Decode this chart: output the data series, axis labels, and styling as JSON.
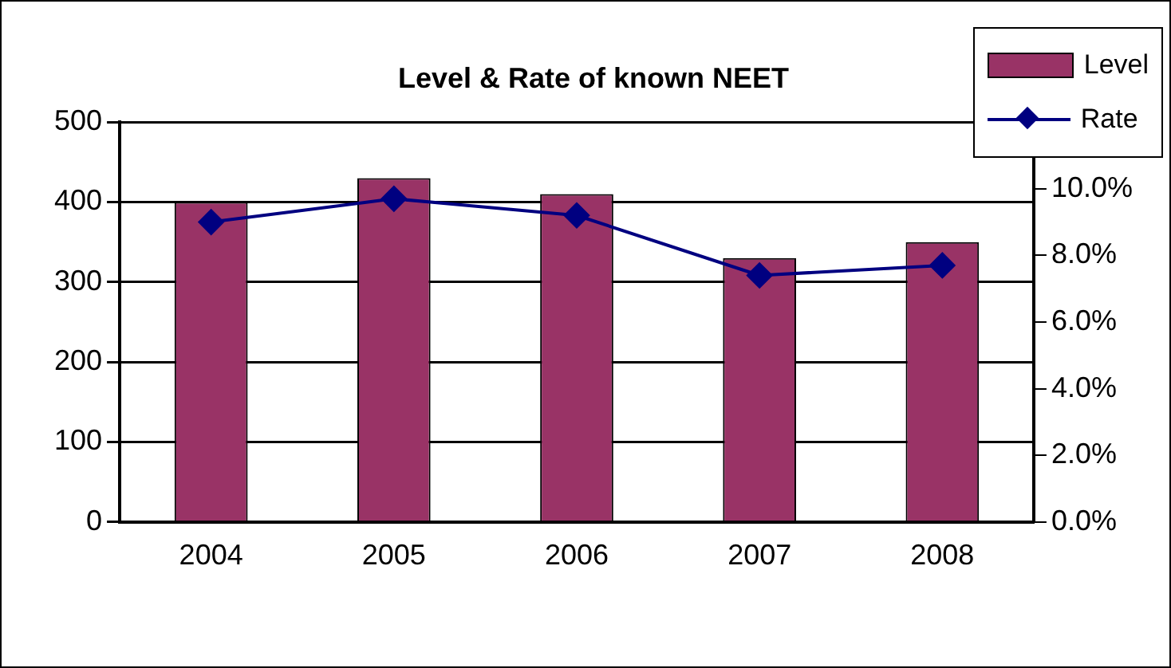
{
  "chart_data": {
    "type": "bar",
    "title": "Level & Rate of known NEET",
    "categories": [
      "2004",
      "2005",
      "2006",
      "2007",
      "2008"
    ],
    "series": [
      {
        "name": "Level",
        "color": "#993366",
        "values": [
          400,
          430,
          410,
          330,
          350
        ]
      },
      {
        "name": "Rate",
        "type": "line",
        "axis": "y2",
        "color": "#000080",
        "values": [
          9.0,
          9.7,
          9.2,
          7.4,
          7.7
        ]
      }
    ],
    "ylim": [
      0,
      500
    ],
    "yticks": [
      0,
      100,
      200,
      300,
      400,
      500
    ],
    "y2lim": [
      0,
      12
    ],
    "y2ticks": [
      {
        "value": 0,
        "label": "0.0%"
      },
      {
        "value": 2,
        "label": "2.0%"
      },
      {
        "value": 4,
        "label": "4.0%"
      },
      {
        "value": 6,
        "label": "6.0%"
      },
      {
        "value": 8,
        "label": "8.0%"
      },
      {
        "value": 10,
        "label": "10.0%"
      }
    ],
    "grid": "y",
    "legend": "top right",
    "marker": "diamond"
  }
}
